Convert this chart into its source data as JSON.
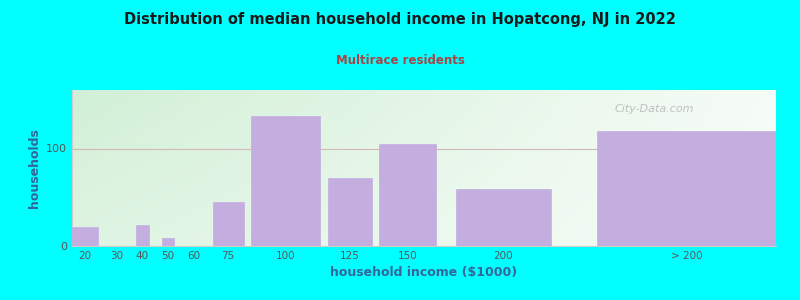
{
  "title": "Distribution of median household income in Hopatcong, NJ in 2022",
  "subtitle": "Multirace residents",
  "xlabel": "household income ($1000)",
  "ylabel": "households",
  "bg_outer": "#00FFFF",
  "bar_color": "#c4aee0",
  "categories": [
    "20",
    "30",
    "40",
    "50",
    "60",
    "75",
    "100",
    "125",
    "150",
    "200",
    "> 200"
  ],
  "bar_lefts": [
    10,
    25,
    35,
    45,
    55,
    65,
    80,
    110,
    130,
    160,
    215
  ],
  "bar_widths": [
    10,
    5,
    5,
    5,
    5,
    12,
    27,
    17,
    22,
    37,
    70
  ],
  "bar_heights": [
    20,
    0,
    22,
    8,
    0,
    45,
    133,
    70,
    105,
    58,
    118
  ],
  "ylim": [
    0,
    160
  ],
  "yticks": [
    0,
    100
  ],
  "xtick_labels": [
    "20",
    "30",
    "40",
    "50",
    "60",
    "75",
    "100",
    "125",
    "150",
    "200",
    "> 200"
  ],
  "watermark": "City-Data.com",
  "hline_y": 100,
  "hline_color": "#d4b8b8",
  "title_color": "#1a1a1a",
  "subtitle_color": "#aa4444",
  "label_color": "#336699"
}
